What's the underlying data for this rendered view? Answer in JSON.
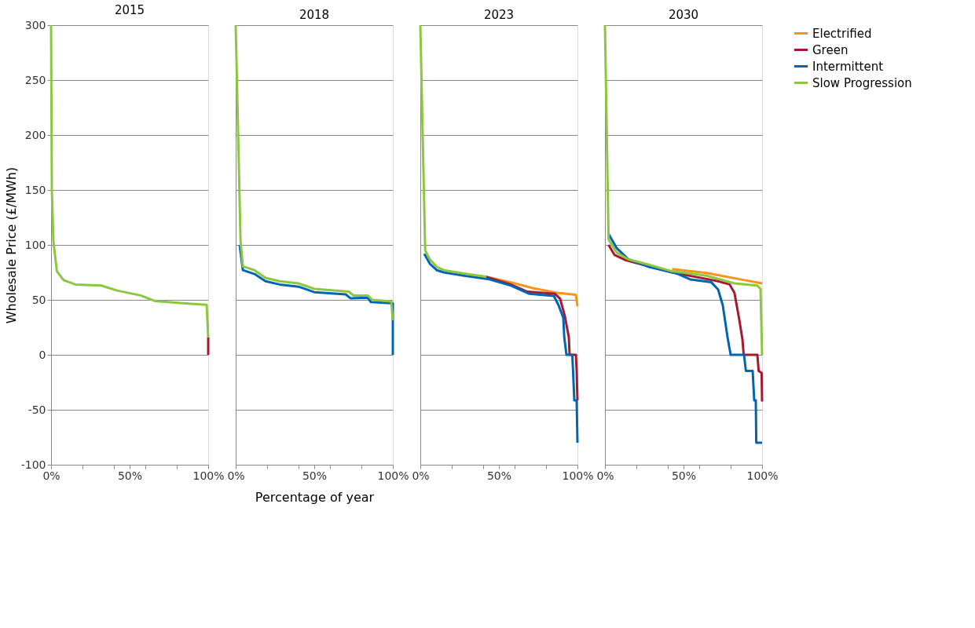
{
  "chart_data": [
    {
      "type": "line",
      "title": "2015",
      "ylabel": "Wholesale Price (£/MWh)",
      "xlim": [
        0,
        100
      ],
      "ylim": [
        -100,
        300
      ],
      "yticks": [
        -100,
        -50,
        0,
        50,
        100,
        150,
        200,
        250,
        300
      ],
      "xticks": [
        {
          "value": 0,
          "label": "0%"
        },
        {
          "value": 20,
          "label": null
        },
        {
          "value": 40,
          "label": null
        },
        {
          "value": 50,
          "label": "50%"
        },
        {
          "value": 60,
          "label": null
        },
        {
          "value": 80,
          "label": null
        },
        {
          "value": 100,
          "label": "100%"
        }
      ],
      "grid": "y",
      "legend": "right",
      "series": [
        {
          "name": "Green",
          "color": "#a6192e",
          "x": [
            100,
            100
          ],
          "values": [
            16,
            0
          ]
        },
        {
          "name": "Slow Progression",
          "color": "#8dc63f",
          "x": [
            0,
            0.5,
            1.5,
            3.7,
            8,
            15.5,
            32,
            42,
            57,
            66,
            89,
            99,
            100
          ],
          "values": [
            300,
            150,
            103,
            76,
            68,
            64,
            63,
            58.5,
            54,
            49,
            46.5,
            45.5,
            16
          ]
        }
      ]
    },
    {
      "type": "line",
      "title": "2018",
      "xlabel": "Percentage of year",
      "xlim": [
        0,
        100
      ],
      "ylim": [
        -100,
        300
      ],
      "yticks": [
        -100,
        -50,
        0,
        50,
        100,
        150,
        200,
        250,
        300
      ],
      "xticks": [
        {
          "value": 0,
          "label": "0%"
        },
        {
          "value": 20,
          "label": null
        },
        {
          "value": 40,
          "label": null
        },
        {
          "value": 50,
          "label": "50%"
        },
        {
          "value": 60,
          "label": null
        },
        {
          "value": 80,
          "label": null
        },
        {
          "value": 100,
          "label": "100%"
        }
      ],
      "grid": "y",
      "tick_labels": "x",
      "legend": "right",
      "series": [
        {
          "name": "Intermittent",
          "color": "#0066b3",
          "x": [
            2.5,
            4.6,
            12,
            19,
            28,
            40,
            50,
            70,
            73,
            84,
            86,
            99,
            100,
            100
          ],
          "values": [
            100,
            77,
            73.5,
            67,
            64,
            62,
            57,
            55,
            51.5,
            52,
            48,
            47,
            47,
            0
          ]
        },
        {
          "name": "Slow Progression",
          "color": "#8dc63f",
          "x": [
            0,
            3.1,
            4.6,
            12,
            19,
            28,
            40,
            50,
            72,
            75,
            84,
            87,
            99,
            100
          ],
          "values": [
            300,
            103,
            80.5,
            77,
            70,
            67,
            65,
            60,
            57.5,
            54,
            54,
            50,
            48.5,
            31.5
          ]
        }
      ]
    },
    {
      "type": "line",
      "title": "2023",
      "xlim": [
        0,
        100
      ],
      "ylim": [
        -100,
        300
      ],
      "yticks": [
        -100,
        -50,
        0,
        50,
        100,
        150,
        200,
        250,
        300
      ],
      "xticks": [
        {
          "value": 0,
          "label": "0%"
        },
        {
          "value": 20,
          "label": null
        },
        {
          "value": 40,
          "label": null
        },
        {
          "value": 50,
          "label": "50%"
        },
        {
          "value": 60,
          "label": null
        },
        {
          "value": 80,
          "label": null
        },
        {
          "value": 100,
          "label": "100%"
        }
      ],
      "grid": "y",
      "tick_labels": "x",
      "legend": "right",
      "series": [
        {
          "name": "Electrified",
          "color": "#f7941d",
          "x": [
            42,
            57.7,
            72,
            87,
            99,
            100
          ],
          "values": [
            71,
            66,
            60.5,
            56.5,
            54.6,
            44
          ]
        },
        {
          "name": "Green",
          "color": "#a6192e",
          "x": [
            42,
            57.7,
            68,
            85.7,
            89,
            92,
            94.5,
            95,
            99,
            99.5,
            100
          ],
          "values": [
            71,
            64,
            57.5,
            55.5,
            51,
            35,
            16,
            0,
            0,
            -14.6,
            -41.5
          ]
        },
        {
          "name": "Intermittent",
          "color": "#0066b3",
          "x": [
            2.5,
            6,
            10.5,
            15,
            28,
            43,
            57.7,
            69.5,
            85,
            88,
            91,
            91.6,
            93,
            96.7,
            97.2,
            98,
            99.5,
            100
          ],
          "values": [
            92,
            83,
            77,
            75,
            72,
            69,
            63,
            55.5,
            53.6,
            45,
            33.5,
            16,
            0,
            0,
            -14.6,
            -41.5,
            -41.5,
            -80
          ]
        },
        {
          "name": "Slow Progression",
          "color": "#8dc63f",
          "x": [
            0,
            3.1,
            6,
            10.5,
            15,
            28,
            42
          ],
          "values": [
            300,
            95,
            87,
            80,
            77,
            74,
            71
          ]
        }
      ]
    },
    {
      "type": "line",
      "title": "2030",
      "xlim": [
        0,
        100
      ],
      "ylim": [
        -100,
        300
      ],
      "yticks": [
        -100,
        -50,
        0,
        50,
        100,
        150,
        200,
        250,
        300
      ],
      "xticks": [
        {
          "value": 0,
          "label": "0%"
        },
        {
          "value": 20,
          "label": null
        },
        {
          "value": 40,
          "label": null
        },
        {
          "value": 50,
          "label": "50%"
        },
        {
          "value": 60,
          "label": null
        },
        {
          "value": 80,
          "label": null
        },
        {
          "value": 100,
          "label": "100%"
        }
      ],
      "grid": "y",
      "tick_labels": "x",
      "legend": "right",
      "series": [
        {
          "name": "Electrified",
          "color": "#f7941d",
          "x": [
            42.7,
            64.8,
            86.8,
            100
          ],
          "values": [
            78,
            74.5,
            68.5,
            65
          ]
        },
        {
          "name": "Green",
          "color": "#a6192e",
          "x": [
            2.3,
            6,
            13.4,
            28,
            42.7,
            57.4,
            72,
            79.4,
            82.4,
            85.3,
            87.5,
            88.3,
            97,
            97.8,
            99.7,
            100
          ],
          "values": [
            100,
            91,
            86,
            80.5,
            75,
            71,
            67,
            64,
            56.5,
            33.5,
            14,
            0,
            0,
            -14.6,
            -16.5,
            -42.5
          ]
        },
        {
          "name": "Intermittent",
          "color": "#0066b3",
          "x": [
            2.3,
            7.5,
            14.8,
            28,
            45.7,
            54.5,
            67.7,
            72,
            75,
            78,
            80,
            88.5,
            89.7,
            94,
            95,
            96,
            96.3,
            100
          ],
          "values": [
            110,
            97,
            87,
            80,
            74,
            68.5,
            66,
            59.5,
            45,
            16,
            0,
            0,
            -14.6,
            -14.6,
            -41.5,
            -41.5,
            -80,
            -80
          ]
        },
        {
          "name": "Slow Progression",
          "color": "#8dc63f",
          "x": [
            0,
            2.3,
            7.5,
            14.8,
            28,
            42.7,
            64.8,
            82.4,
            97,
            99,
            100
          ],
          "values": [
            300,
            105,
            93,
            87,
            82,
            76,
            72,
            65,
            63,
            60,
            0
          ]
        }
      ]
    }
  ]
}
